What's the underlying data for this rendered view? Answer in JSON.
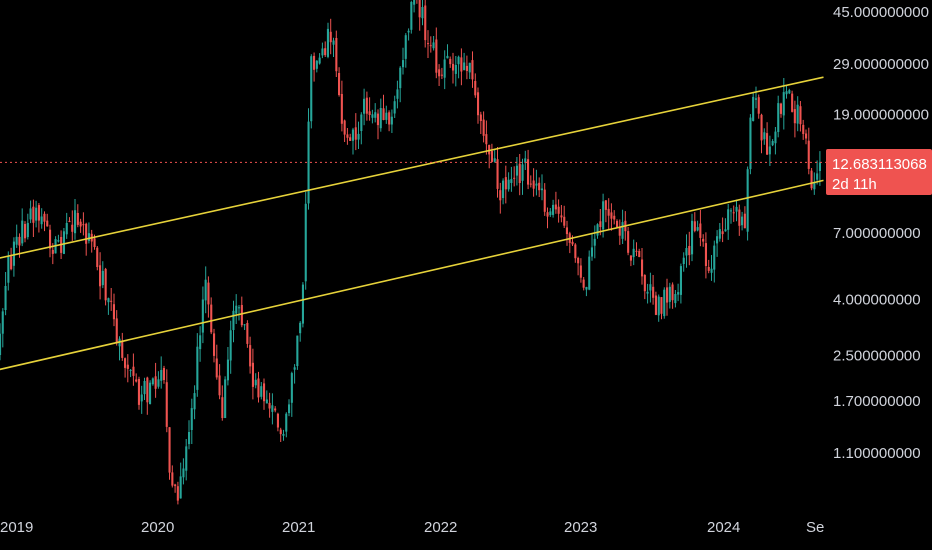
{
  "chart_data": {
    "type": "candlestick",
    "title": "",
    "xlabel": "",
    "ylabel": "",
    "y_scale": "log",
    "ylim": [
      0.68,
      60
    ],
    "grid": false,
    "y_ticks": [
      "45.000000000",
      "29.000000000",
      "19.000000000",
      "7.000000000",
      "4.000000000",
      "2.500000000",
      "1.700000000",
      "1.100000000"
    ],
    "x_ticks": [
      "2019",
      "2020",
      "2021",
      "2022",
      "2023",
      "2024",
      "Se"
    ],
    "last_price": "12.683113068",
    "countdown": "2d 11h",
    "colors": {
      "up": "#26a69a",
      "down": "#ef5350",
      "trendline": "#e6d23a",
      "price_line": "#ef5350",
      "badge": "#ef5350"
    },
    "price_path": [
      [
        "2018-11-20",
        5.6
      ],
      [
        "2018-12-20",
        2.1
      ],
      [
        "2019-01-20",
        5.4
      ],
      [
        "2019-04-01",
        8.8
      ],
      [
        "2019-05-20",
        6.0
      ],
      [
        "2019-07-15",
        8.0
      ],
      [
        "2019-08-20",
        6.3
      ],
      [
        "2019-10-15",
        3.3
      ],
      [
        "2019-12-15",
        1.75
      ],
      [
        "2020-02-15",
        2.1
      ],
      [
        "2020-03-12",
        0.7
      ],
      [
        "2020-04-15",
        1.1
      ],
      [
        "2020-06-01",
        4.6
      ],
      [
        "2020-07-15",
        1.6
      ],
      [
        "2020-08-20",
        4.4
      ],
      [
        "2020-10-01",
        2.0
      ],
      [
        "2020-12-20",
        1.3
      ],
      [
        "2021-02-01",
        4.0
      ],
      [
        "2021-02-20",
        28.0
      ],
      [
        "2021-04-15",
        38.0
      ],
      [
        "2021-05-20",
        14.0
      ],
      [
        "2021-07-10",
        20.0
      ],
      [
        "2021-09-15",
        18.0
      ],
      [
        "2021-11-10",
        52.0
      ],
      [
        "2022-01-10",
        28.0
      ],
      [
        "2022-03-25",
        28.0
      ],
      [
        "2022-06-15",
        10.0
      ],
      [
        "2022-08-15",
        12.0
      ],
      [
        "2022-11-20",
        7.0
      ],
      [
        "2023-01-15",
        4.6
      ],
      [
        "2023-03-01",
        9.0
      ],
      [
        "2023-05-01",
        6.5
      ],
      [
        "2023-07-10",
        3.8
      ],
      [
        "2023-09-01",
        4.2
      ],
      [
        "2023-10-15",
        7.5
      ],
      [
        "2023-11-20",
        5.2
      ],
      [
        "2024-01-20",
        8.6
      ],
      [
        "2024-02-20",
        7.8
      ],
      [
        "2024-03-10",
        22.0
      ],
      [
        "2024-04-15",
        14.0
      ],
      [
        "2024-06-01",
        24.0
      ],
      [
        "2024-07-20",
        16.0
      ],
      [
        "2024-08-10",
        10.0
      ],
      [
        "2024-08-28",
        12.7
      ]
    ],
    "trendlines": [
      {
        "from": [
          "2018-11-20",
          5.5
        ],
        "to": [
          "2024-09-05",
          26.0
        ]
      },
      {
        "from": [
          "2018-11-20",
          2.15
        ],
        "to": [
          "2024-09-05",
          10.9
        ]
      }
    ]
  }
}
